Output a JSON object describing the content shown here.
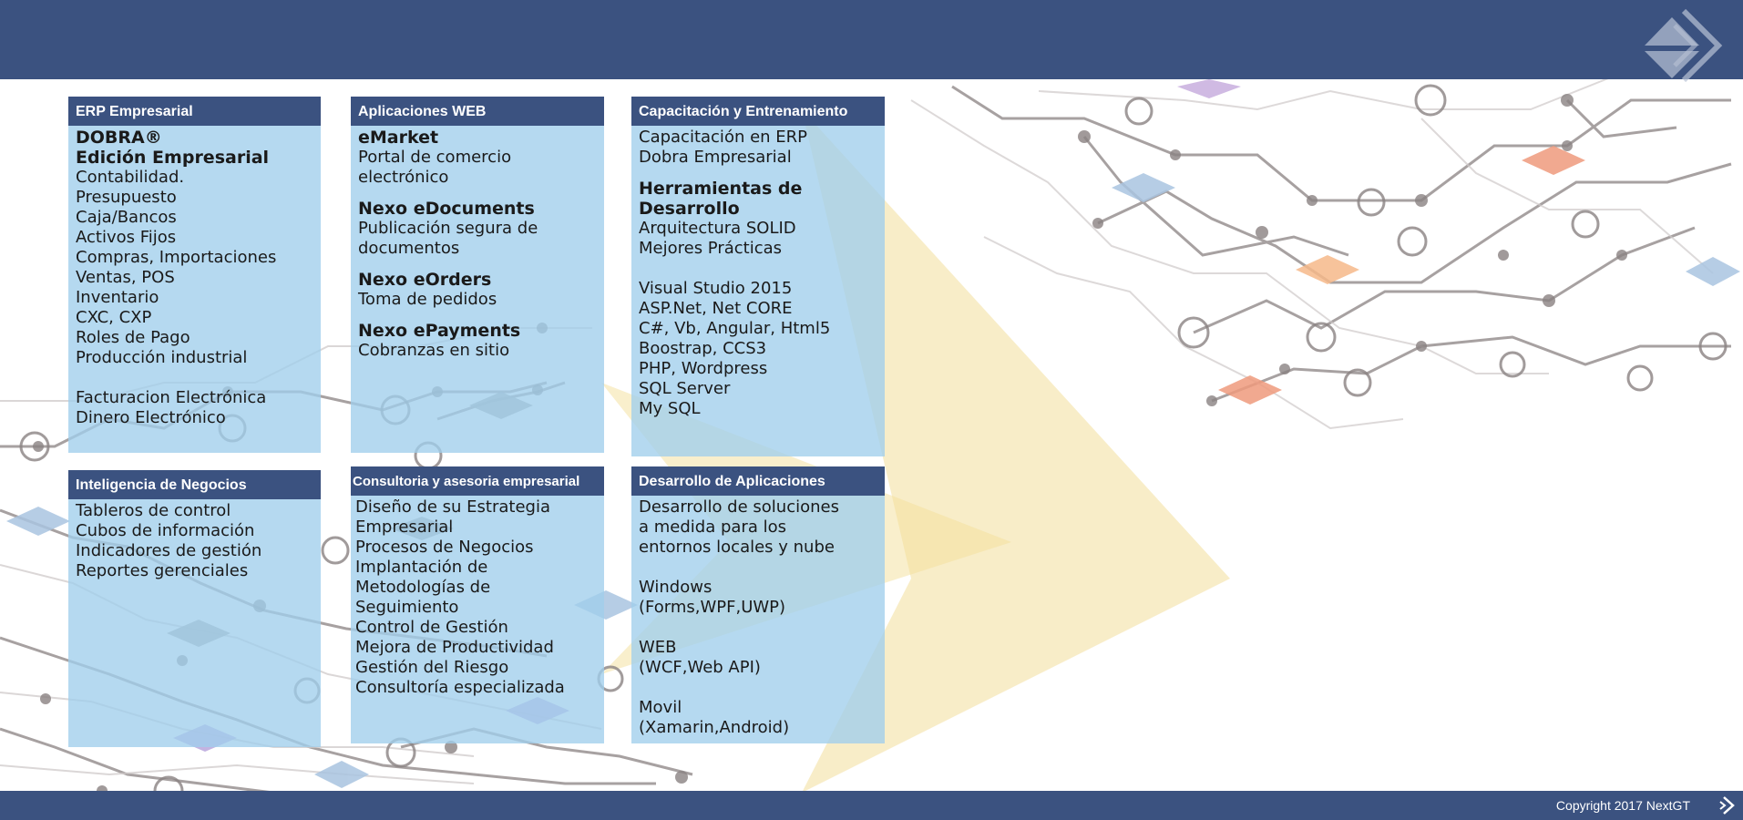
{
  "colors": {
    "brand": "#3b5280",
    "panel": "#a0ceec",
    "accent_yellow": "#f3df9a"
  },
  "icons": {
    "logo": "nextgt-arrow-logo-icon",
    "footer": "nextgt-arrow-small-icon"
  },
  "panels": {
    "erp": {
      "title": "ERP Empresarial",
      "lines": [
        "DOBRA®",
        "Edición Empresarial",
        "Contabilidad.",
        "Presupuesto",
        "Caja/Bancos",
        "Activos Fijos",
        "Compras, Importaciones",
        "Ventas, POS",
        "Inventario",
        "CXC, CXP",
        "Roles de Pago",
        "Producción industrial",
        "Facturacion Electrónica",
        "Dinero Electrónico"
      ]
    },
    "web": {
      "title": "Aplicaciones WEB",
      "lines": [
        "eMarket",
        "Portal de comercio",
        "electrónico",
        "Nexo eDocuments",
        "Publicación segura de",
        "documentos",
        "Nexo eOrders",
        "Toma de pedidos",
        "Nexo ePayments",
        "Cobranzas en sitio"
      ]
    },
    "training": {
      "title": "Capacitación y Entrenamiento",
      "lines": [
        "Capacitación en ERP",
        "Dobra Empresarial",
        "Herramientas de",
        "Desarrollo",
        "Arquitectura SOLID",
        "Mejores Prácticas",
        "Visual Studio 2015",
        "ASP.Net, Net CORE",
        "C#, Vb, Angular, Html5",
        "Boostrap, CCS3",
        "PHP, Wordpress",
        "SQL Server",
        "My SQL"
      ]
    },
    "bi": {
      "title": "Inteligencia de Negocios",
      "lines": [
        "Tableros de control",
        "Cubos de información",
        "Indicadores de gestión",
        "Reportes gerenciales"
      ]
    },
    "consulting": {
      "title": "Consultoria y asesoria empresarial",
      "lines": [
        "Diseño de su Estrategia",
        "Empresarial",
        "Procesos de Negocios",
        "Implantación de",
        "Metodologías de",
        "Seguimiento",
        "Control de Gestión",
        "Mejora de Productividad",
        "Gestión del Riesgo",
        "Consultoría especializada"
      ]
    },
    "dev": {
      "title": "Desarrollo de Aplicaciones",
      "lines": [
        "Desarrollo de soluciones",
        "a medida para los",
        "entornos locales y nube",
        "Windows",
        "(Forms,WPF,UWP)",
        "WEB",
        "(WCF,Web API)",
        "Movil",
        "(Xamarin,Android)"
      ]
    }
  },
  "footer": {
    "copyright": "Copyright  2017 NextGT"
  }
}
